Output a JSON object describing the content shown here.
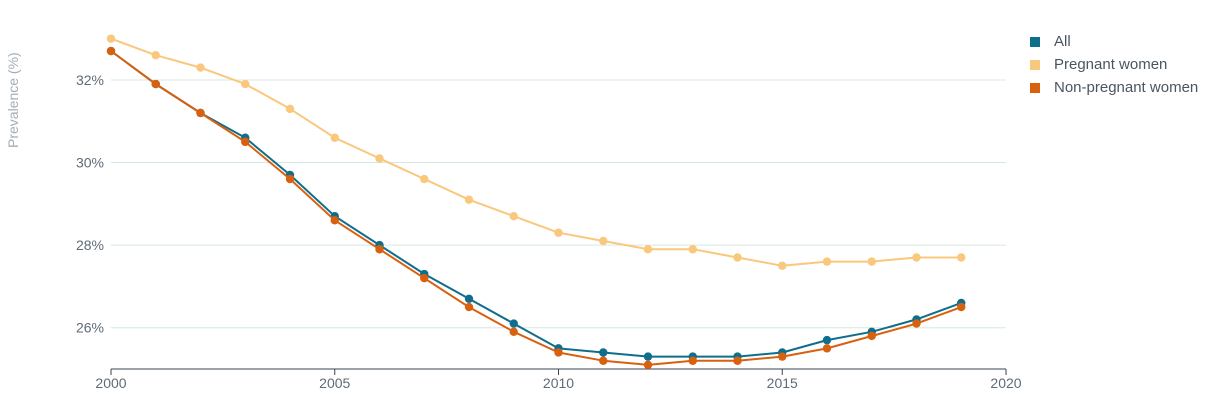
{
  "chart_data": {
    "type": "line",
    "ylabel": "Prevalence (%)",
    "xlabel": "",
    "xlim": [
      2000,
      2020
    ],
    "ylim": [
      25,
      33.5
    ],
    "x_ticks": [
      "2000",
      "2005",
      "2010",
      "2015",
      "2020"
    ],
    "x_tick_values": [
      2000,
      2005,
      2010,
      2015,
      2020
    ],
    "y_ticks": [
      "26%",
      "28%",
      "30%",
      "32%"
    ],
    "y_tick_values": [
      26,
      28,
      30,
      32
    ],
    "grid": true,
    "legend_position": "top-right",
    "x": [
      2000,
      2001,
      2002,
      2003,
      2004,
      2005,
      2006,
      2007,
      2008,
      2009,
      2010,
      2011,
      2012,
      2013,
      2014,
      2015,
      2016,
      2017,
      2018,
      2019
    ],
    "series": [
      {
        "name": "Pregnant women",
        "color": "#f9c87c",
        "values": [
          33.0,
          32.6,
          32.3,
          31.9,
          31.3,
          30.6,
          30.1,
          29.6,
          29.1,
          28.7,
          28.3,
          28.1,
          27.9,
          27.9,
          27.7,
          27.5,
          27.6,
          27.6,
          27.7,
          27.7
        ]
      },
      {
        "name": "All",
        "color": "#0f6e8c",
        "values": [
          32.7,
          31.9,
          31.2,
          30.6,
          29.7,
          28.7,
          28.0,
          27.3,
          26.7,
          26.1,
          25.5,
          25.4,
          25.3,
          25.3,
          25.3,
          25.4,
          25.7,
          25.9,
          26.2,
          26.6
        ]
      },
      {
        "name": "Non-pregnant women",
        "color": "#d9600f",
        "values": [
          32.7,
          31.9,
          31.2,
          30.5,
          29.6,
          28.6,
          27.9,
          27.2,
          26.5,
          25.9,
          25.4,
          25.2,
          25.1,
          25.2,
          25.2,
          25.3,
          25.5,
          25.8,
          26.1,
          26.5
        ]
      }
    ],
    "legend": [
      {
        "name": "All",
        "color": "#0f6e8c"
      },
      {
        "name": "Pregnant women",
        "color": "#f9c87c"
      },
      {
        "name": "Non-pregnant women",
        "color": "#d9600f"
      }
    ]
  }
}
